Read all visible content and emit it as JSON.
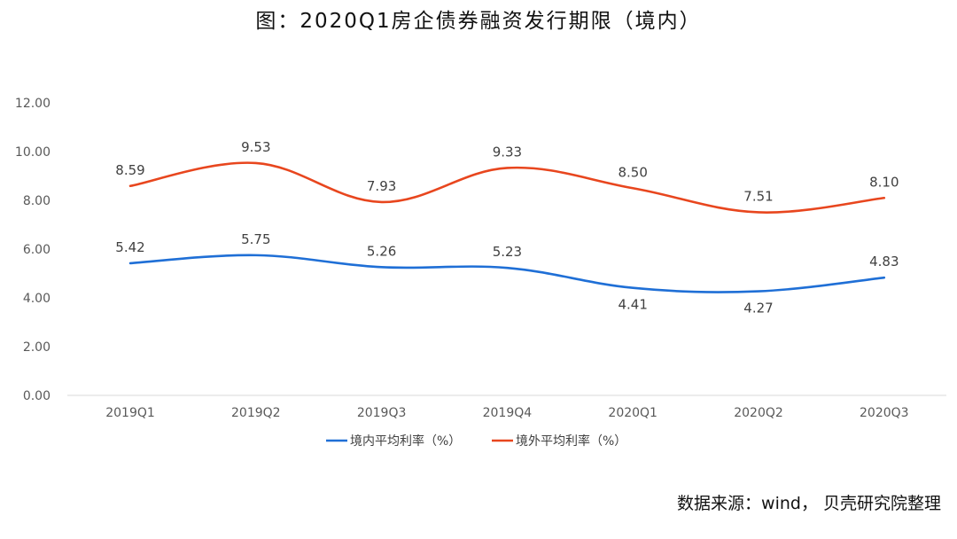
{
  "title": "图：2020Q1房企债券融资发行期限（境内）",
  "source": "数据来源：wind，  贝壳研究院整理",
  "chart_data": {
    "type": "line",
    "categories": [
      "2019Q1",
      "2019Q2",
      "2019Q3",
      "2019Q4",
      "2020Q1",
      "2020Q2",
      "2020Q3"
    ],
    "yticks": [
      "0.00",
      "2.00",
      "4.00",
      "6.00",
      "8.00",
      "10.00",
      "12.00"
    ],
    "ylim": [
      0,
      12
    ],
    "grid": false,
    "legend_position": "bottom",
    "series": [
      {
        "name": "境内平均利率（%）",
        "color": "#1f6fd6",
        "values": [
          5.42,
          5.75,
          5.26,
          5.23,
          4.41,
          4.27,
          4.83
        ],
        "labels": [
          "5.42",
          "5.75",
          "5.26",
          "5.23",
          "4.41",
          "4.27",
          "4.83"
        ]
      },
      {
        "name": "境外平均利率（%）",
        "color": "#e8461e",
        "values": [
          8.59,
          9.53,
          7.93,
          9.33,
          8.5,
          7.51,
          8.1
        ],
        "labels": [
          "8.59",
          "9.53",
          "7.93",
          "9.33",
          "8.50",
          "7.51",
          "8.10"
        ]
      }
    ]
  }
}
